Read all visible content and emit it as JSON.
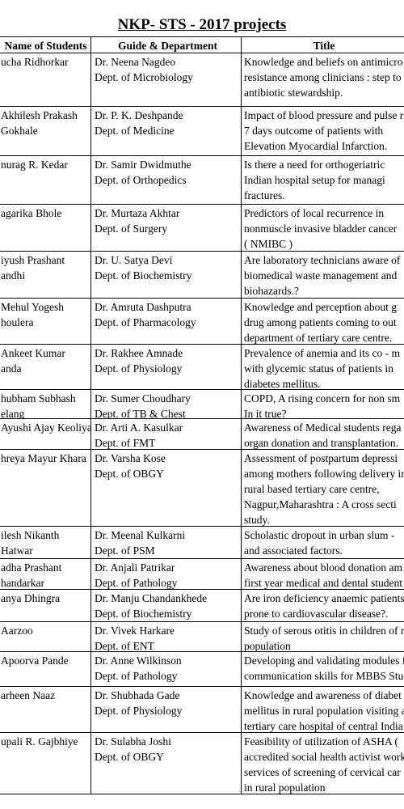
{
  "title": "NKP- STS - 2017 projects",
  "table": {
    "header": [
      "Name of Students",
      "Guide & Department",
      "Title"
    ],
    "rows": [
      [
        [
          "ucha Ridhorkar"
        ],
        [
          "Dr. Neena Nagdeo",
          "Dept. of Microbiology"
        ],
        [
          "Knowledge and beliefs on antimicro",
          "resistance among clinicians : step to",
          "antibiotic stewardship."
        ]
      ],
      [
        [
          "Akhilesh Prakash",
          "Gokhale"
        ],
        [
          "Dr. P. K. Deshpande",
          "Dept. of Medicine"
        ],
        [
          "Impact of blood pressure and pulse r",
          "7 days outcome of patients with",
          "Elevation Myocardial Infarction."
        ]
      ],
      [
        [
          "nurag R. Kedar"
        ],
        [
          "Dr. Samir Dwidmuthe",
          "Dept. of Orthopedics"
        ],
        [
          "Is there a need for orthogeriatric",
          "Indian hospital setup for managi",
          "fractures."
        ]
      ],
      [
        [
          "agarika Bhole"
        ],
        [
          "Dr. Murtaza Akhtar",
          "Dept. of Surgery"
        ],
        [
          "Predictors of local recurrence in",
          "nonmuscle invasive bladder cancer",
          "( NMIBC )"
        ]
      ],
      [
        [
          "iyush Prashant",
          "andhi"
        ],
        [
          "Dr. U. Satya Devi",
          "Dept. of Biochemistry"
        ],
        [
          "Are laboratory technicians aware of",
          "biomedical waste management and",
          "biohazards.?"
        ]
      ],
      [
        [
          "Mehul Yogesh",
          "houlera"
        ],
        [
          "Dr. Amruta Dashputra",
          "Dept. of Pharmacology"
        ],
        [
          "Knowledge and perception about g",
          "drug among patients coming to out",
          "department of tertiary care centre."
        ]
      ],
      [
        [
          "Ankeet      Kumar",
          "anda"
        ],
        [
          "Dr. Rakhee Amnade",
          "Dept. of Physiology"
        ],
        [
          "Prevalence of anemia and its co - m",
          "with glycemic status of patients in",
          "diabetes mellitus."
        ]
      ],
      [
        [
          "hubham Subhash",
          "elang"
        ],
        [
          "Dr. Sumer Choudhary",
          "Dept. of TB & Chest"
        ],
        [
          "COPD, A rising concern for non sm",
          "In it true?"
        ]
      ],
      [
        [
          "Ayushi Ajay Keoliya"
        ],
        [
          "Dr. Arti A. Kasulkar",
          "Dept. of FMT"
        ],
        [
          "Awareness of Medical students rega",
          "organ donation and transplantation."
        ]
      ],
      [
        [
          "hreya Mayur Khara"
        ],
        [
          "Dr. Varsha Kose",
          "Dept. of OBGY"
        ],
        [
          "Assessment of postpartum depressi",
          "among mothers following delivery in",
          "rural based tertiary care centre,",
          "Nagpur,Maharashtra : A cross secti",
          "study."
        ]
      ],
      [
        [
          "ilesh Nikanth",
          "Hatwar"
        ],
        [
          "Dr. Meenal Kulkarni",
          "Dept. of PSM"
        ],
        [
          "Scholastic dropout in urban slum -",
          "and associated factors."
        ]
      ],
      [
        [
          "adha Prashant",
          "handarkar"
        ],
        [
          "Dr. Anjali Patrikar",
          "Dept. of Pathology"
        ],
        [
          "Awareness about blood donation am",
          "first year medical and dental student"
        ]
      ],
      [
        [
          "anya Dhingra"
        ],
        [
          "Dr. Manju Chandankhede",
          "Dept. of Biochemistry"
        ],
        [
          "Are iron deficiency anaemic patients",
          "prone to cardiovascular disease?."
        ]
      ],
      [
        [
          "Aarzoo"
        ],
        [
          "Dr. Vivek Harkare",
          "Dept. of ENT"
        ],
        [
          "Study of serous otitis in children of r",
          "population"
        ]
      ],
      [
        [
          "Apoorva Pande"
        ],
        [
          "Dr. Anne Wilkinson",
          "Dept. of Pathology"
        ],
        [
          "Developing and validating modules f",
          "communication skills for MBBS Stud"
        ]
      ],
      [
        [
          "arheen Naaz"
        ],
        [
          "Dr. Shubhada Gade",
          "Dept. of Physiology"
        ],
        [
          "Knowledge and awareness of diabet",
          "mellitus in rural population visiting a",
          "tertiary care hospital of central India"
        ]
      ],
      [
        [
          "upali R. Gajbhiye"
        ],
        [
          "Dr. Sulabha Joshi",
          "Dept. of OBGY"
        ],
        [
          "Feasibility of utilization of ASHA (",
          "accredited social health activist work",
          "services of screening of cervical car",
          "in rural population"
        ]
      ]
    ]
  }
}
